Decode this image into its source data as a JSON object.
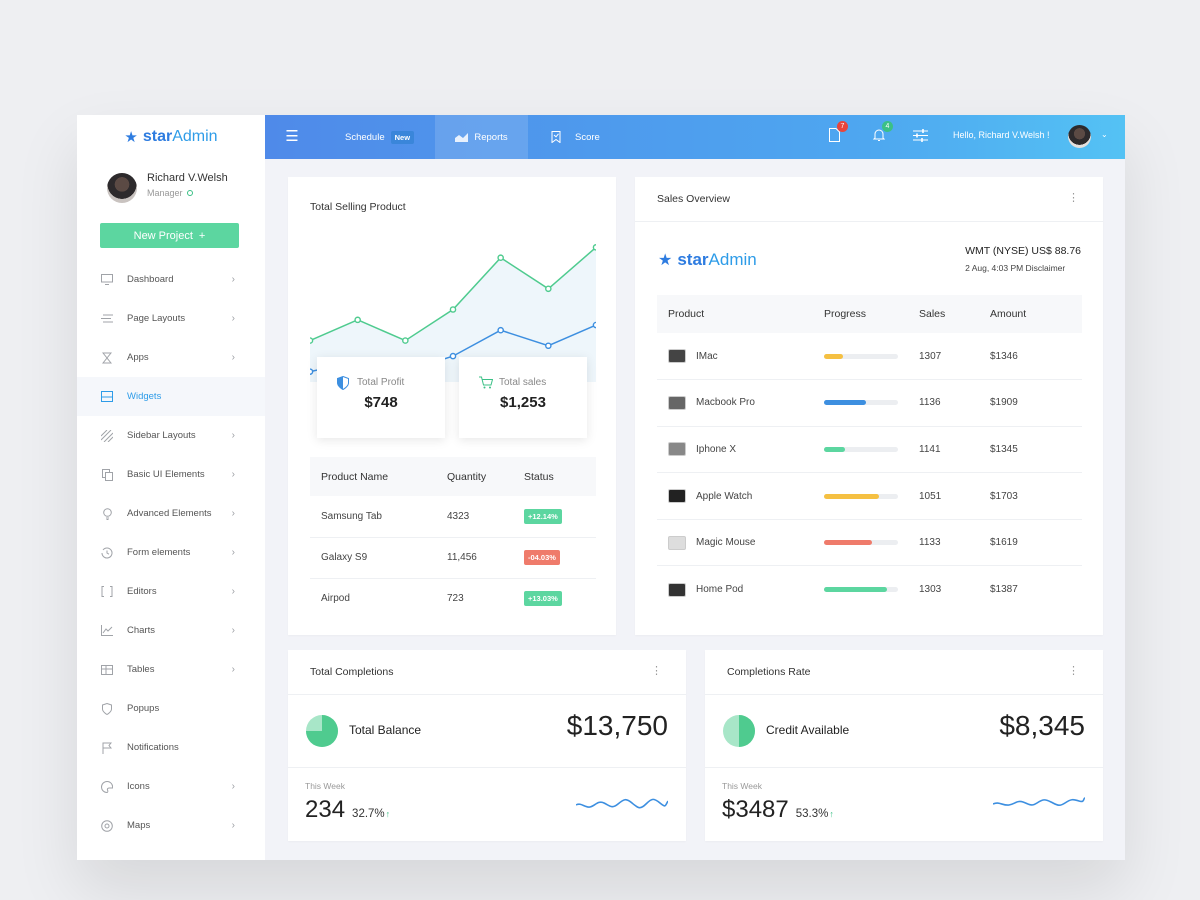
{
  "brand": {
    "part1": "star",
    "part2": "Admin",
    "icon": "star-icon",
    "color": "#2e7ce0"
  },
  "sidebar": {
    "user": {
      "name": "Richard V.Welsh",
      "role": "Manager"
    },
    "new_project_label": "New Project",
    "new_project_icon": "+",
    "items": [
      {
        "label": "Dashboard",
        "icon": "monitor-icon",
        "chevron": "›"
      },
      {
        "label": "Page Layouts",
        "icon": "layout-icon",
        "chevron": "›"
      },
      {
        "label": "Apps",
        "icon": "hourglass-icon",
        "chevron": "›"
      },
      {
        "label": "Widgets",
        "icon": "widgets-icon",
        "chevron": ""
      },
      {
        "label": "Sidebar Layouts",
        "icon": "stripes-icon",
        "chevron": "›"
      },
      {
        "label": "Basic UI Elements",
        "icon": "copy-icon",
        "chevron": "›"
      },
      {
        "label": "Advanced Elements",
        "icon": "bulb-icon",
        "chevron": "›"
      },
      {
        "label": "Form elements",
        "icon": "history-icon",
        "chevron": "›"
      },
      {
        "label": "Editors",
        "icon": "brackets-icon",
        "chevron": "›"
      },
      {
        "label": "Charts",
        "icon": "chart-icon",
        "chevron": "›"
      },
      {
        "label": "Tables",
        "icon": "table-icon",
        "chevron": "›"
      },
      {
        "label": "Popups",
        "icon": "shield-icon",
        "chevron": ""
      },
      {
        "label": "Notifications",
        "icon": "flag-icon",
        "chevron": ""
      },
      {
        "label": "Icons",
        "icon": "palette-icon",
        "chevron": "›"
      },
      {
        "label": "Maps",
        "icon": "map-pin-icon",
        "chevron": "›"
      }
    ],
    "active": "Widgets"
  },
  "topbar": {
    "schedule": "Schedule",
    "new_badge": "New",
    "reports": "Reports",
    "score": "Score",
    "doc_count": "7",
    "bell_count": "4",
    "greeting": "Hello, Richard V.Welsh !"
  },
  "selling": {
    "title": "Total Selling Product",
    "profit": {
      "label": "Total Profit",
      "value": "$748"
    },
    "sales": {
      "label": "Total sales",
      "value": "$1,253"
    },
    "headers": [
      "Product Name",
      "Quantity",
      "Status"
    ],
    "rows": [
      {
        "name": "Samsung Tab",
        "qty": "4323",
        "status": "+12.14%",
        "color": "#5cd6a0"
      },
      {
        "name": "Galaxy S9",
        "qty": "11,456",
        "status": "-04.03%",
        "color": "#ef7b6b"
      },
      {
        "name": "Airpod",
        "qty": "723",
        "status": "+13.03%",
        "color": "#5cd6a0"
      }
    ]
  },
  "chart_data": {
    "type": "area",
    "x": [
      0,
      1,
      2,
      3,
      4,
      5,
      6
    ],
    "series": [
      {
        "values": [
          40,
          60,
          40,
          70,
          120,
          90,
          130
        ],
        "color": "#4fcb8f"
      },
      {
        "values": [
          10,
          20,
          10,
          25,
          50,
          35,
          55
        ],
        "color": "#3d8fe0"
      }
    ],
    "ylim": [
      0,
      140
    ]
  },
  "sales": {
    "title": "Sales Overview",
    "stock": "WMT (NYSE) US$ 88.76",
    "stock_date": "2 Aug, 4:03 PM Disclaimer",
    "headers": [
      "Product",
      "Progress",
      "Sales",
      "Amount"
    ],
    "rows": [
      {
        "product": "IMac",
        "progress": 0.25,
        "color": "#f5c042",
        "sales": "1307",
        "amount": "$1346",
        "img": "imac-icon",
        "imgcolor": "#444"
      },
      {
        "product": "Macbook Pro",
        "progress": 0.57,
        "color": "#3d8fe0",
        "sales": "1136",
        "amount": "$1909",
        "img": "macbook-icon",
        "imgcolor": "#666"
      },
      {
        "product": "Iphone X",
        "progress": 0.28,
        "color": "#5cd6a0",
        "sales": "1141",
        "amount": "$1345",
        "img": "iphone-icon",
        "imgcolor": "#888"
      },
      {
        "product": "Apple Watch",
        "progress": 0.74,
        "color": "#f5c042",
        "sales": "1051",
        "amount": "$1703",
        "img": "watch-icon",
        "imgcolor": "#222"
      },
      {
        "product": "Magic Mouse",
        "progress": 0.65,
        "color": "#ef7b6b",
        "sales": "1133",
        "amount": "$1619",
        "img": "mouse-icon",
        "imgcolor": "#ddd"
      },
      {
        "product": "Home Pod",
        "progress": 0.85,
        "color": "#5cd6a0",
        "sales": "1303",
        "amount": "$1387",
        "img": "homepod-icon",
        "imgcolor": "#333"
      }
    ]
  },
  "completions": {
    "title": "Total Completions",
    "label": "Total Balance",
    "value": "$13,750",
    "week_label": "This Week",
    "week_value": "234",
    "week_pct": "32.7%",
    "pie_fraction": 0.75
  },
  "rate": {
    "title": "Completions Rate",
    "label": "Credit Available",
    "value": "$8,345",
    "week_label": "This Week",
    "week_value": "$3487",
    "week_pct": "53.3%",
    "pie_fraction": 0.5
  }
}
